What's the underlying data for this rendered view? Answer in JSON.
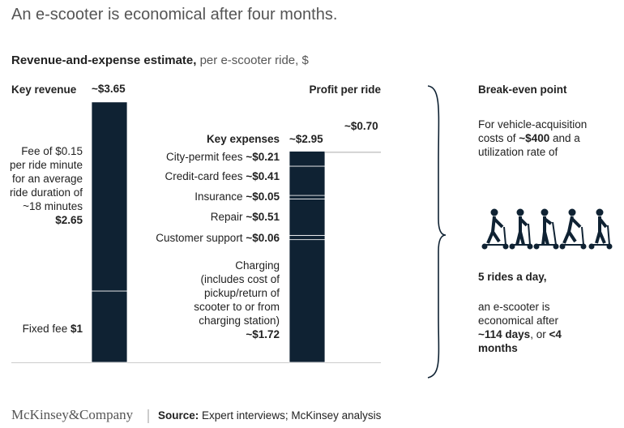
{
  "title": "An e-scooter is economical after four months.",
  "chart_data": {
    "type": "waterfall",
    "subtitle_bold": "Revenue-and-expense estimate,",
    "subtitle": "per e-scooter ride, $",
    "color": "#0f2233",
    "revenue": {
      "name": "Key revenue",
      "total": 3.65,
      "total_label": "~$3.65",
      "categories": [
        "Fixed fee",
        "Fee of $0.15 per ride minute for an average ride duration of ~18 minutes"
      ],
      "values": [
        1,
        2.65
      ],
      "value_labels": [
        "$1",
        "$2.65"
      ]
    },
    "expenses": {
      "name": "Key expenses",
      "total": 2.95,
      "total_label": "~$2.95",
      "categories": [
        "City-permit fees",
        "Credit-card fees",
        "Insurance",
        "Repair",
        "Customer support",
        "Charging (includes cost of pickup/return of scooter to or from charging station)"
      ],
      "values": [
        0.21,
        0.41,
        0.05,
        0.51,
        0.06,
        1.72
      ],
      "value_labels": [
        "~$0.21",
        "~$0.41",
        "~$0.05",
        "~$0.51",
        "~$0.06",
        "~$1.72"
      ]
    },
    "profit": {
      "name": "Profit per ride",
      "value": 0.7,
      "value_label": "~$0.70"
    }
  },
  "break_even": {
    "title": "Break-even point",
    "intro_pre": "For vehicle-acquisition costs of",
    "cost": "~$400",
    "intro_post": "and a utilization rate of",
    "rate": "5 rides a day,",
    "result_pre": "an e-scooter is economical after",
    "days": "~114 days",
    "result_mid": ", or",
    "months": "<4 months"
  },
  "footer": {
    "logo": "McKinsey&Company",
    "source_label": "Source:",
    "source": "Expert interviews; McKinsey analysis"
  }
}
